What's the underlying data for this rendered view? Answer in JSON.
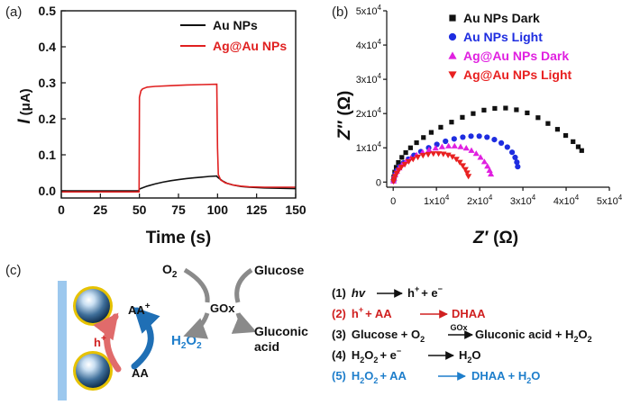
{
  "panel_labels": {
    "a": "(a)",
    "b": "(b)",
    "c": "(c)"
  },
  "colors": {
    "au": "#111111",
    "agau": "#e02020",
    "au_light": "#1e2de0",
    "agau_dark": "#e020e0",
    "agau_light": "#e82020",
    "blue_text": "#1e7ecb",
    "red_text": "#d02020",
    "grey": "#8a8a8a",
    "substrate": "#9cc8ee"
  },
  "chart_data": [
    {
      "type": "line",
      "title": "",
      "xlabel": "Time (s)",
      "ylabel_italic": "I",
      "ylabel_unit": "(μA)",
      "xlim": [
        0,
        150
      ],
      "ylim": [
        -0.02,
        0.5
      ],
      "xticks": [
        0,
        25,
        50,
        75,
        100,
        125,
        150
      ],
      "xtick_labels": [
        "0",
        "25",
        "50",
        "75",
        "100",
        "125",
        "150"
      ],
      "yticks": [
        0.0,
        0.1,
        0.2,
        0.3,
        0.4,
        0.5
      ],
      "ytick_labels": [
        "0.0",
        "0.1",
        "0.2",
        "0.3",
        "0.4",
        "0.5"
      ],
      "legend_position": "top-right",
      "series": [
        {
          "name": "Au NPs",
          "color": "#111111",
          "x": [
            0,
            10,
            20,
            30,
            40,
            49.5,
            50,
            55,
            60,
            65,
            70,
            75,
            80,
            85,
            90,
            95,
            99.5,
            100,
            103,
            106,
            110,
            115,
            120,
            130,
            140,
            150
          ],
          "y": [
            0.0,
            0.0,
            0.0,
            0.0,
            0.0,
            0.0,
            0.005,
            0.013,
            0.019,
            0.024,
            0.028,
            0.031,
            0.034,
            0.036,
            0.038,
            0.04,
            0.041,
            0.038,
            0.028,
            0.021,
            0.016,
            0.012,
            0.01,
            0.008,
            0.007,
            0.006
          ]
        },
        {
          "name": "Ag@Au NPs",
          "color": "#e02020",
          "x": [
            0,
            10,
            20,
            30,
            40,
            49.8,
            50,
            51,
            52,
            55,
            60,
            70,
            80,
            90,
            99.5,
            100,
            100.5,
            102,
            105,
            110,
            115,
            120,
            130,
            140,
            150
          ],
          "y": [
            -0.003,
            -0.003,
            -0.003,
            -0.003,
            -0.003,
            -0.003,
            0.26,
            0.278,
            0.283,
            0.288,
            0.29,
            0.292,
            0.294,
            0.295,
            0.296,
            0.12,
            0.045,
            0.03,
            0.022,
            0.016,
            0.013,
            0.011,
            0.01,
            0.01,
            0.01
          ]
        }
      ]
    },
    {
      "type": "scatter",
      "title": "",
      "xlabel_italic": "Z′",
      "xlabel_unit": "(Ω)",
      "ylabel_italic": "Z′′",
      "ylabel_unit": "(Ω)",
      "xlim": [
        -1500,
        50000
      ],
      "ylim": [
        -1500,
        50000
      ],
      "xticks": [
        0,
        10000,
        20000,
        30000,
        40000,
        50000
      ],
      "yticks": [
        0,
        10000,
        20000,
        30000,
        40000,
        50000
      ],
      "tick_mantissa": [
        "0",
        "1x10",
        "2x10",
        "3x10",
        "4x10",
        "5x10"
      ],
      "tick_exponent": "4",
      "legend_position": "top-right",
      "series": [
        {
          "name": "Au NPs Dark",
          "marker": "square",
          "color": "#111111",
          "x": [
            80,
            150,
            350,
            700,
            1200,
            2000,
            2900,
            4000,
            5400,
            7000,
            8800,
            11000,
            13500,
            16000,
            18500,
            21000,
            23500,
            26000,
            28500,
            31000,
            33500,
            35800,
            38000,
            39900,
            41600,
            42800,
            43600
          ],
          "y": [
            400,
            1500,
            2900,
            4300,
            5700,
            7200,
            8600,
            10000,
            11500,
            13000,
            14500,
            16000,
            17500,
            18900,
            20000,
            21000,
            21500,
            21600,
            21100,
            20200,
            18800,
            17100,
            15400,
            13600,
            11800,
            10300,
            9200
          ]
        },
        {
          "name": "Au NPs Light",
          "marker": "circle",
          "color": "#1e2de0",
          "x": [
            80,
            200,
            500,
            900,
            1500,
            2400,
            3500,
            4800,
            6400,
            8200,
            10100,
            12100,
            14100,
            16100,
            18000,
            19900,
            21700,
            23400,
            25000,
            26400,
            27500,
            28200,
            28600,
            28800
          ],
          "y": [
            300,
            1200,
            2300,
            3400,
            4500,
            5600,
            6700,
            7800,
            8900,
            10000,
            11000,
            11900,
            12600,
            13100,
            13400,
            13400,
            13100,
            12400,
            11400,
            10200,
            8700,
            7200,
            5800,
            4500
          ]
        },
        {
          "name": "Ag@Au NPs Dark",
          "marker": "triangle-up",
          "color": "#e020e0",
          "x": [
            80,
            200,
            450,
            850,
            1400,
            2100,
            3000,
            4100,
            5400,
            6800,
            8300,
            9800,
            11300,
            12800,
            14200,
            15600,
            16900,
            18100,
            19200,
            20200,
            21100,
            21800,
            22300,
            22600
          ],
          "y": [
            300,
            1100,
            2100,
            3100,
            4100,
            5100,
            6100,
            7000,
            7900,
            8700,
            9400,
            9900,
            10300,
            10500,
            10500,
            10300,
            9900,
            9200,
            8300,
            7200,
            5900,
            4600,
            3400,
            2300
          ]
        },
        {
          "name": "Ag@Au NPs Light",
          "marker": "triangle-down",
          "color": "#e82020",
          "x": [
            80,
            200,
            450,
            800,
            1300,
            1900,
            2700,
            3600,
            4600,
            5700,
            6900,
            8100,
            9300,
            10500,
            11600,
            12700,
            13700,
            14600,
            15400,
            16100,
            16700,
            17100,
            17400
          ],
          "y": [
            200,
            900,
            1700,
            2600,
            3500,
            4400,
            5200,
            6000,
            6700,
            7300,
            7800,
            8100,
            8300,
            8300,
            8200,
            7900,
            7400,
            6700,
            5800,
            4800,
            3700,
            2700,
            1700
          ]
        }
      ]
    }
  ],
  "scheme": {
    "h_plus": "h",
    "aa_plus": "AA",
    "aa": "AA",
    "h2o2_main": "H",
    "h2o2_sub2": "2",
    "h2o2_o": "O",
    "o2_main": "O",
    "o2_sub": "2",
    "gox": "GOx",
    "glucose": "Glucose",
    "gluconic_line1": "Gluconic",
    "gluconic_line2": "acid"
  },
  "reactions": {
    "r1_num": "(1)",
    "r1_lhs": "hv",
    "r1_rhs": "h",
    "r1_rhs2": "+ e",
    "r2_num": "(2)",
    "r2_lhs": "h",
    "r2_lhs2": "+ AA",
    "r2_rhs": "DHAA",
    "r3_num": "(3)",
    "r3_lhs": "Glucose + O",
    "r3_sub": "2",
    "r3_cat": "GOx",
    "r3_rhs": "Gluconic acid + H",
    "r3_sub2": "2",
    "r3_o": "O",
    "r3_sub3": "2",
    "r4_num": "(4)",
    "r4_lhs": "H",
    "r4_sub": "2",
    "r4_o": "O",
    "r4_sub2": "2",
    "r4_e": "+ e",
    "r4_rhs": "H",
    "r4_sub3": "2",
    "r4_o2": "O",
    "r5_num": "(5)",
    "r5_lhs": "H",
    "r5_sub": "2",
    "r5_o": "O",
    "r5_sub2": "2",
    "r5_aa": "+ AA",
    "r5_rhs": "DHAA + H",
    "r5_sub3": "2",
    "r5_o2": "O",
    "plus": "+",
    "minus": "−"
  },
  "arrow_shape": "arrow-right-icon",
  "sphere_shape": "nanoparticle-sphere-icon"
}
